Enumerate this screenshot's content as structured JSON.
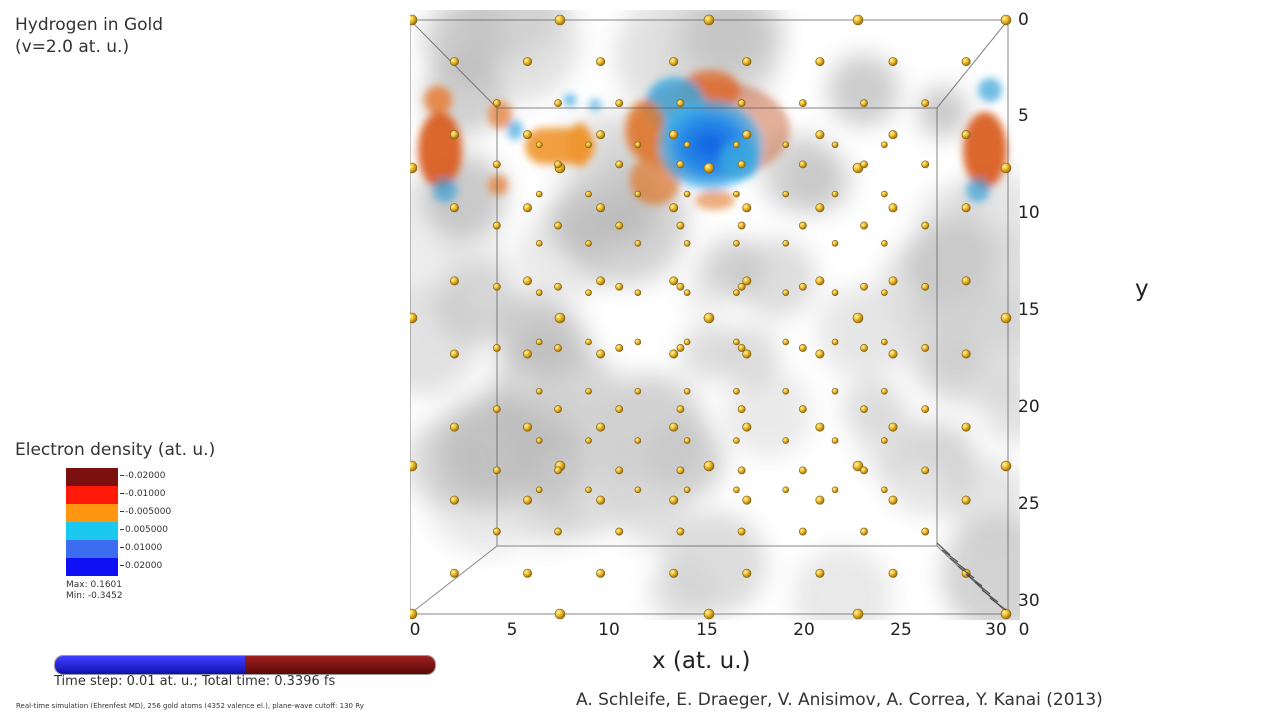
{
  "title": {
    "line1": "Hydrogen in Gold",
    "line2": "(v=2.0 at. u.)"
  },
  "legend": {
    "title": "Electron density (at. u.)",
    "entries": [
      {
        "label": "-0.02000",
        "color": "#7a1010"
      },
      {
        "label": "-0.01000",
        "color": "#ff1a0a"
      },
      {
        "label": "-0.005000",
        "color": "#ff9510"
      },
      {
        "label": "0.005000",
        "color": "#1ac8f0"
      },
      {
        "label": "0.01000",
        "color": "#3c6cf0"
      },
      {
        "label": "0.02000",
        "color": "#1010f5"
      }
    ],
    "max": "Max: 0.1601",
    "min": "Min: -0.3452"
  },
  "axes": {
    "xlabel": "x (at. u.)",
    "ylabel": "y",
    "xticks": [
      "0",
      "5",
      "10",
      "15",
      "20",
      "25",
      "30"
    ],
    "yticks": [
      "0",
      "5",
      "10",
      "15",
      "20",
      "25",
      "30"
    ],
    "zero_right": "0"
  },
  "progress": {
    "fraction": 0.5,
    "left_color": "#1a1acc",
    "right_color": "#6b0c0c"
  },
  "time_text": "Time step: 0.01 at. u.; Total time: 0.3396 fs",
  "footer": "Real-time simulation (Ehrenfest MD), 256 gold atoms (4352 valence el.), plane-wave cutoff: 130 Ry",
  "credits": "A. Schleife, E. Draeger, V. Anisimov, A. Correa, Y. Kanai (2013)"
}
